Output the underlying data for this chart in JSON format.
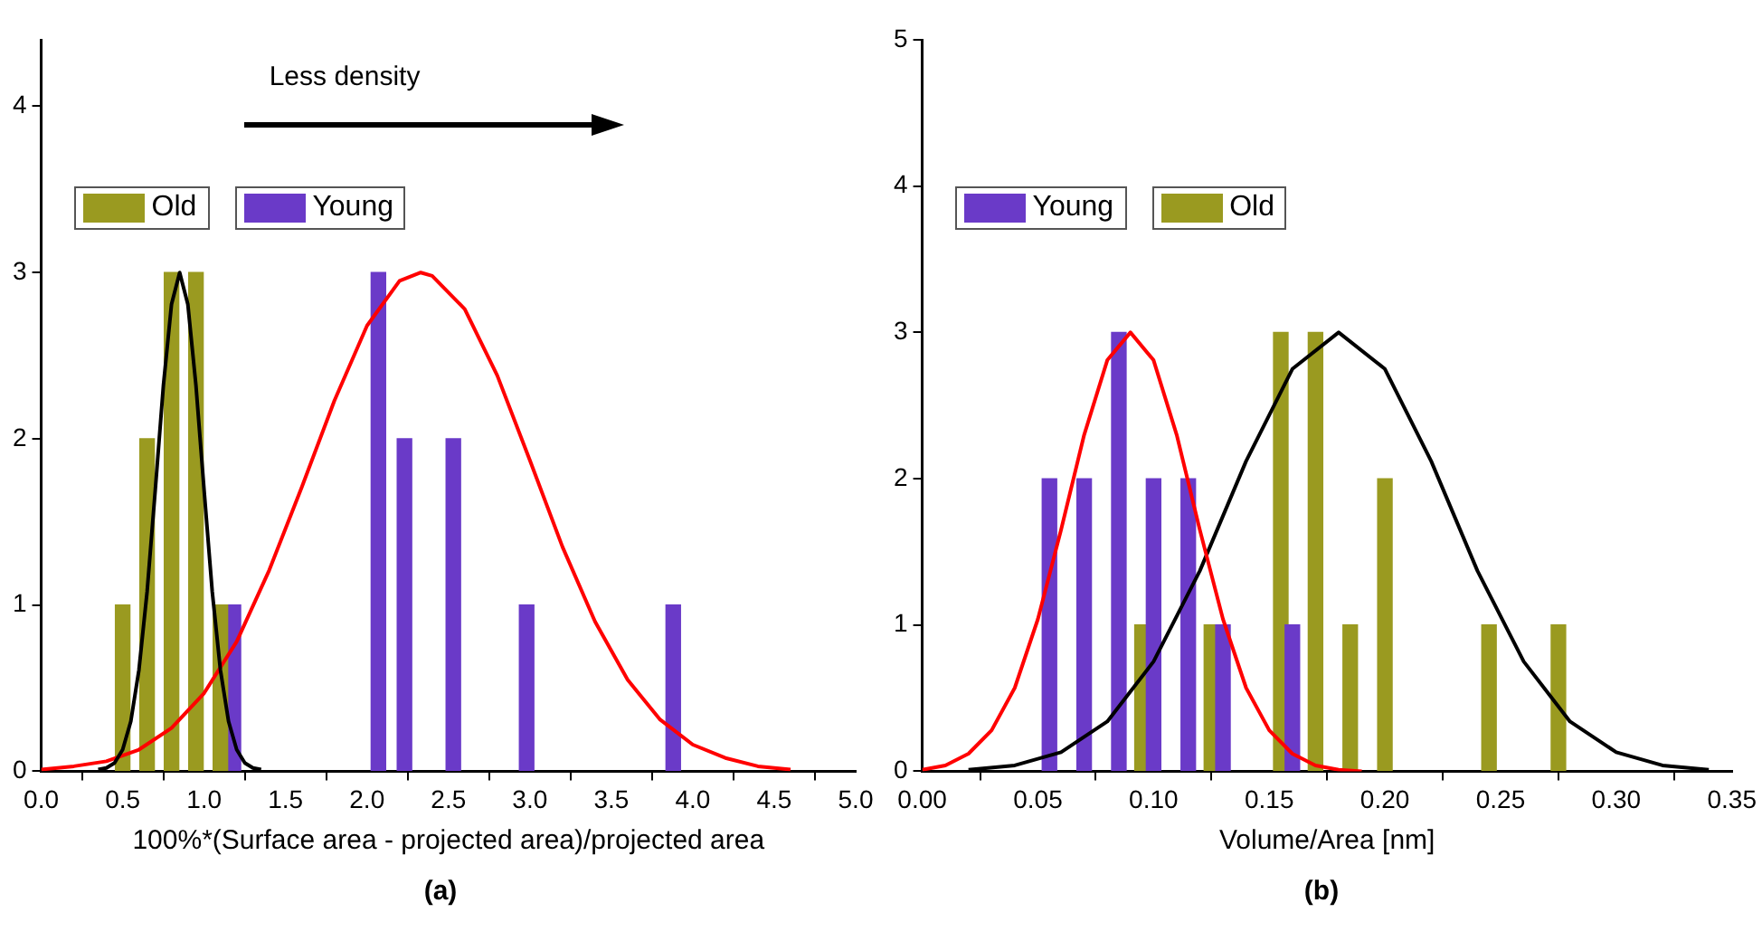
{
  "chart_data": [
    {
      "type": "bar",
      "xlabel": "100%*(Surface area - projected area)/projected area",
      "annotations": [
        "Less density",
        "(a)"
      ],
      "xlim": [
        0,
        5
      ],
      "xticks": [
        {
          "value": 0,
          "label": "0.0"
        },
        {
          "value": 0.5,
          "label": "0.5"
        },
        {
          "value": 1,
          "label": "1.0"
        },
        {
          "value": 1.5,
          "label": "1.5"
        },
        {
          "value": 2,
          "label": "2.0"
        },
        {
          "value": 2.5,
          "label": "2.5"
        },
        {
          "value": 3,
          "label": "3.0"
        },
        {
          "value": 3.5,
          "label": "3.5"
        },
        {
          "value": 4,
          "label": "4.0"
        },
        {
          "value": 4.5,
          "label": "4.5"
        },
        {
          "value": 5,
          "label": "5.0"
        }
      ],
      "ylim": [
        0,
        4.4
      ],
      "yticks": [
        0,
        1,
        2,
        3,
        4
      ],
      "grid": false,
      "legend": "top left",
      "series": [
        {
          "name": "Old",
          "color": "#9a9a20",
          "x": [
            0.5,
            0.65,
            0.8,
            0.95,
            1.1
          ],
          "values": [
            1,
            2,
            3,
            3,
            1
          ]
        },
        {
          "name": "Young",
          "color": "#6a3ac8",
          "x": [
            1.18,
            2.07,
            2.23,
            2.53,
            2.98,
            3.88
          ],
          "values": [
            1,
            3,
            2,
            2,
            1,
            1
          ]
        },
        {
          "type": "line",
          "color": "#000000",
          "x": [
            0.35,
            0.4,
            0.45,
            0.5,
            0.55,
            0.6,
            0.65,
            0.7,
            0.75,
            0.8,
            0.85,
            0.9,
            0.95,
            1.0,
            1.05,
            1.1,
            1.15,
            1.2,
            1.25,
            1.3,
            1.35
          ],
          "values": [
            0.01,
            0.02,
            0.05,
            0.13,
            0.3,
            0.61,
            1.08,
            1.69,
            2.32,
            2.81,
            3,
            2.81,
            2.32,
            1.69,
            1.08,
            0.61,
            0.3,
            0.13,
            0.05,
            0.02,
            0.01
          ]
        },
        {
          "type": "line",
          "color": "#ff0000",
          "x": [
            0,
            0.2,
            0.4,
            0.6,
            0.8,
            1.0,
            1.2,
            1.4,
            1.6,
            1.8,
            2.0,
            2.2,
            2.33,
            2.4,
            2.6,
            2.8,
            3.0,
            3.2,
            3.4,
            3.6,
            3.8,
            4.0,
            4.2,
            4.4,
            4.6
          ],
          "values": [
            0.01,
            0.03,
            0.06,
            0.13,
            0.26,
            0.47,
            0.78,
            1.21,
            1.71,
            2.23,
            2.68,
            2.95,
            3,
            2.98,
            2.78,
            2.38,
            1.87,
            1.35,
            0.9,
            0.55,
            0.31,
            0.16,
            0.08,
            0.03,
            0.01
          ]
        }
      ]
    },
    {
      "type": "bar",
      "xlabel": "Volume/Area [nm]",
      "annotations": [
        "(b)"
      ],
      "xlim": [
        0,
        0.35
      ],
      "xticks": [
        {
          "value": 0,
          "label": "0.00"
        },
        {
          "value": 0.05,
          "label": "0.05"
        },
        {
          "value": 0.1,
          "label": "0.10"
        },
        {
          "value": 0.15,
          "label": "0.15"
        },
        {
          "value": 0.2,
          "label": "0.20"
        },
        {
          "value": 0.25,
          "label": "0.25"
        },
        {
          "value": 0.3,
          "label": "0.30"
        },
        {
          "value": 0.35,
          "label": "0.35"
        }
      ],
      "ylim": [
        0,
        5
      ],
      "yticks": [
        0,
        1,
        2,
        3,
        4,
        5
      ],
      "grid": false,
      "legend": "top left",
      "series": [
        {
          "name": "Young",
          "color": "#6a3ac8",
          "x": [
            0.055,
            0.07,
            0.085,
            0.1,
            0.115,
            0.13,
            0.16
          ],
          "values": [
            2,
            2,
            3,
            2,
            2,
            1,
            1
          ]
        },
        {
          "name": "Old",
          "color": "#9a9a20",
          "x": [
            0.095,
            0.125,
            0.155,
            0.17,
            0.185,
            0.2,
            0.245,
            0.275
          ],
          "values": [
            1,
            1,
            3,
            3,
            1,
            2,
            1,
            1
          ]
        },
        {
          "type": "line",
          "color": "#ff0000",
          "x": [
            0,
            0.01,
            0.02,
            0.03,
            0.04,
            0.05,
            0.06,
            0.07,
            0.08,
            0.09,
            0.1,
            0.11,
            0.12,
            0.13,
            0.14,
            0.15,
            0.16,
            0.17,
            0.18,
            0.19
          ],
          "values": [
            0.01,
            0.04,
            0.12,
            0.28,
            0.57,
            1.04,
            1.65,
            2.3,
            2.81,
            3,
            2.81,
            2.3,
            1.65,
            1.04,
            0.57,
            0.28,
            0.12,
            0.04,
            0.01,
            0
          ]
        },
        {
          "type": "line",
          "color": "#000000",
          "x": [
            0.02,
            0.04,
            0.06,
            0.08,
            0.1,
            0.12,
            0.14,
            0.16,
            0.18,
            0.2,
            0.22,
            0.24,
            0.26,
            0.28,
            0.3,
            0.32,
            0.34
          ],
          "values": [
            0.01,
            0.04,
            0.13,
            0.34,
            0.75,
            1.37,
            2.12,
            2.75,
            3,
            2.75,
            2.12,
            1.37,
            0.75,
            0.34,
            0.13,
            0.04,
            0.01
          ]
        }
      ]
    }
  ]
}
